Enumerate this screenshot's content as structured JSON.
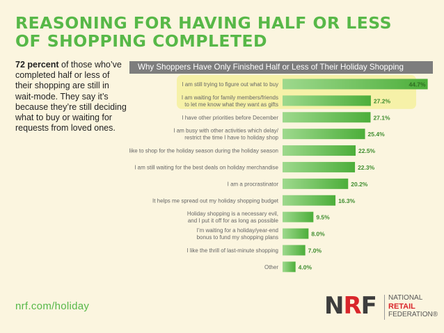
{
  "title": {
    "line1": "REASONING FOR HAVING HALF OR LESS",
    "line2": "OF SHOPPING COMPLETED"
  },
  "intro": {
    "bold": "72 percent",
    "text": " of those who’ve completed half or less of their shopping are still in wait-mode. They say it’s because they’re still deciding what to buy or waiting for requests from loved ones."
  },
  "chart_data": {
    "type": "bar",
    "orientation": "horizontal",
    "title": "Why Shoppers Have Only Finished Half or Less of Their Holiday Shopping",
    "categories": [
      [
        "I am still trying to figure out what to buy"
      ],
      [
        "I am waiting for family members/friends",
        "to let me know what they want as gifts"
      ],
      [
        "I have other priorities before December"
      ],
      [
        "I am busy with other activities which delay/",
        "restrict the time I have to holiday shop"
      ],
      [
        "I like to shop for the holiday season during the holiday season"
      ],
      [
        "I am still waiting for the best deals on holiday merchandise"
      ],
      [
        "I am a procrastinator"
      ],
      [
        "It helps me spread out my holiday shopping budget"
      ],
      [
        "Holiday shopping is a necessary evil,",
        "and I put it off for as long as possible"
      ],
      [
        "I’m waiting for a holiday/year-end",
        "bonus to fund my shopping plans"
      ],
      [
        "I like the thrill of last-minute shopping"
      ],
      [
        "Other"
      ]
    ],
    "values": [
      44.7,
      27.2,
      27.1,
      25.4,
      22.5,
      22.3,
      20.2,
      16.3,
      9.5,
      8.0,
      7.0,
      4.0
    ],
    "value_labels": [
      "44.7%",
      "27.2%",
      "27.1%",
      "25.4%",
      "22.5%",
      "22.3%",
      "20.2%",
      "16.3%",
      "9.5%",
      "8.0%",
      "7.0%",
      "4.0%"
    ],
    "highlighted": [
      0,
      1
    ],
    "xlim": [
      0,
      45
    ],
    "colors": {
      "bar": "#5cb84a",
      "bar_light": "#9ed98d",
      "highlight": "#f6f1a8",
      "value": "#3f8d2f"
    }
  },
  "footer": {
    "link": "nrf.com/holiday",
    "logo": {
      "n": "N",
      "r": "R",
      "f": "F",
      "line1": "NATIONAL",
      "line2": "RETAIL",
      "line3": "FEDERATION®"
    }
  }
}
